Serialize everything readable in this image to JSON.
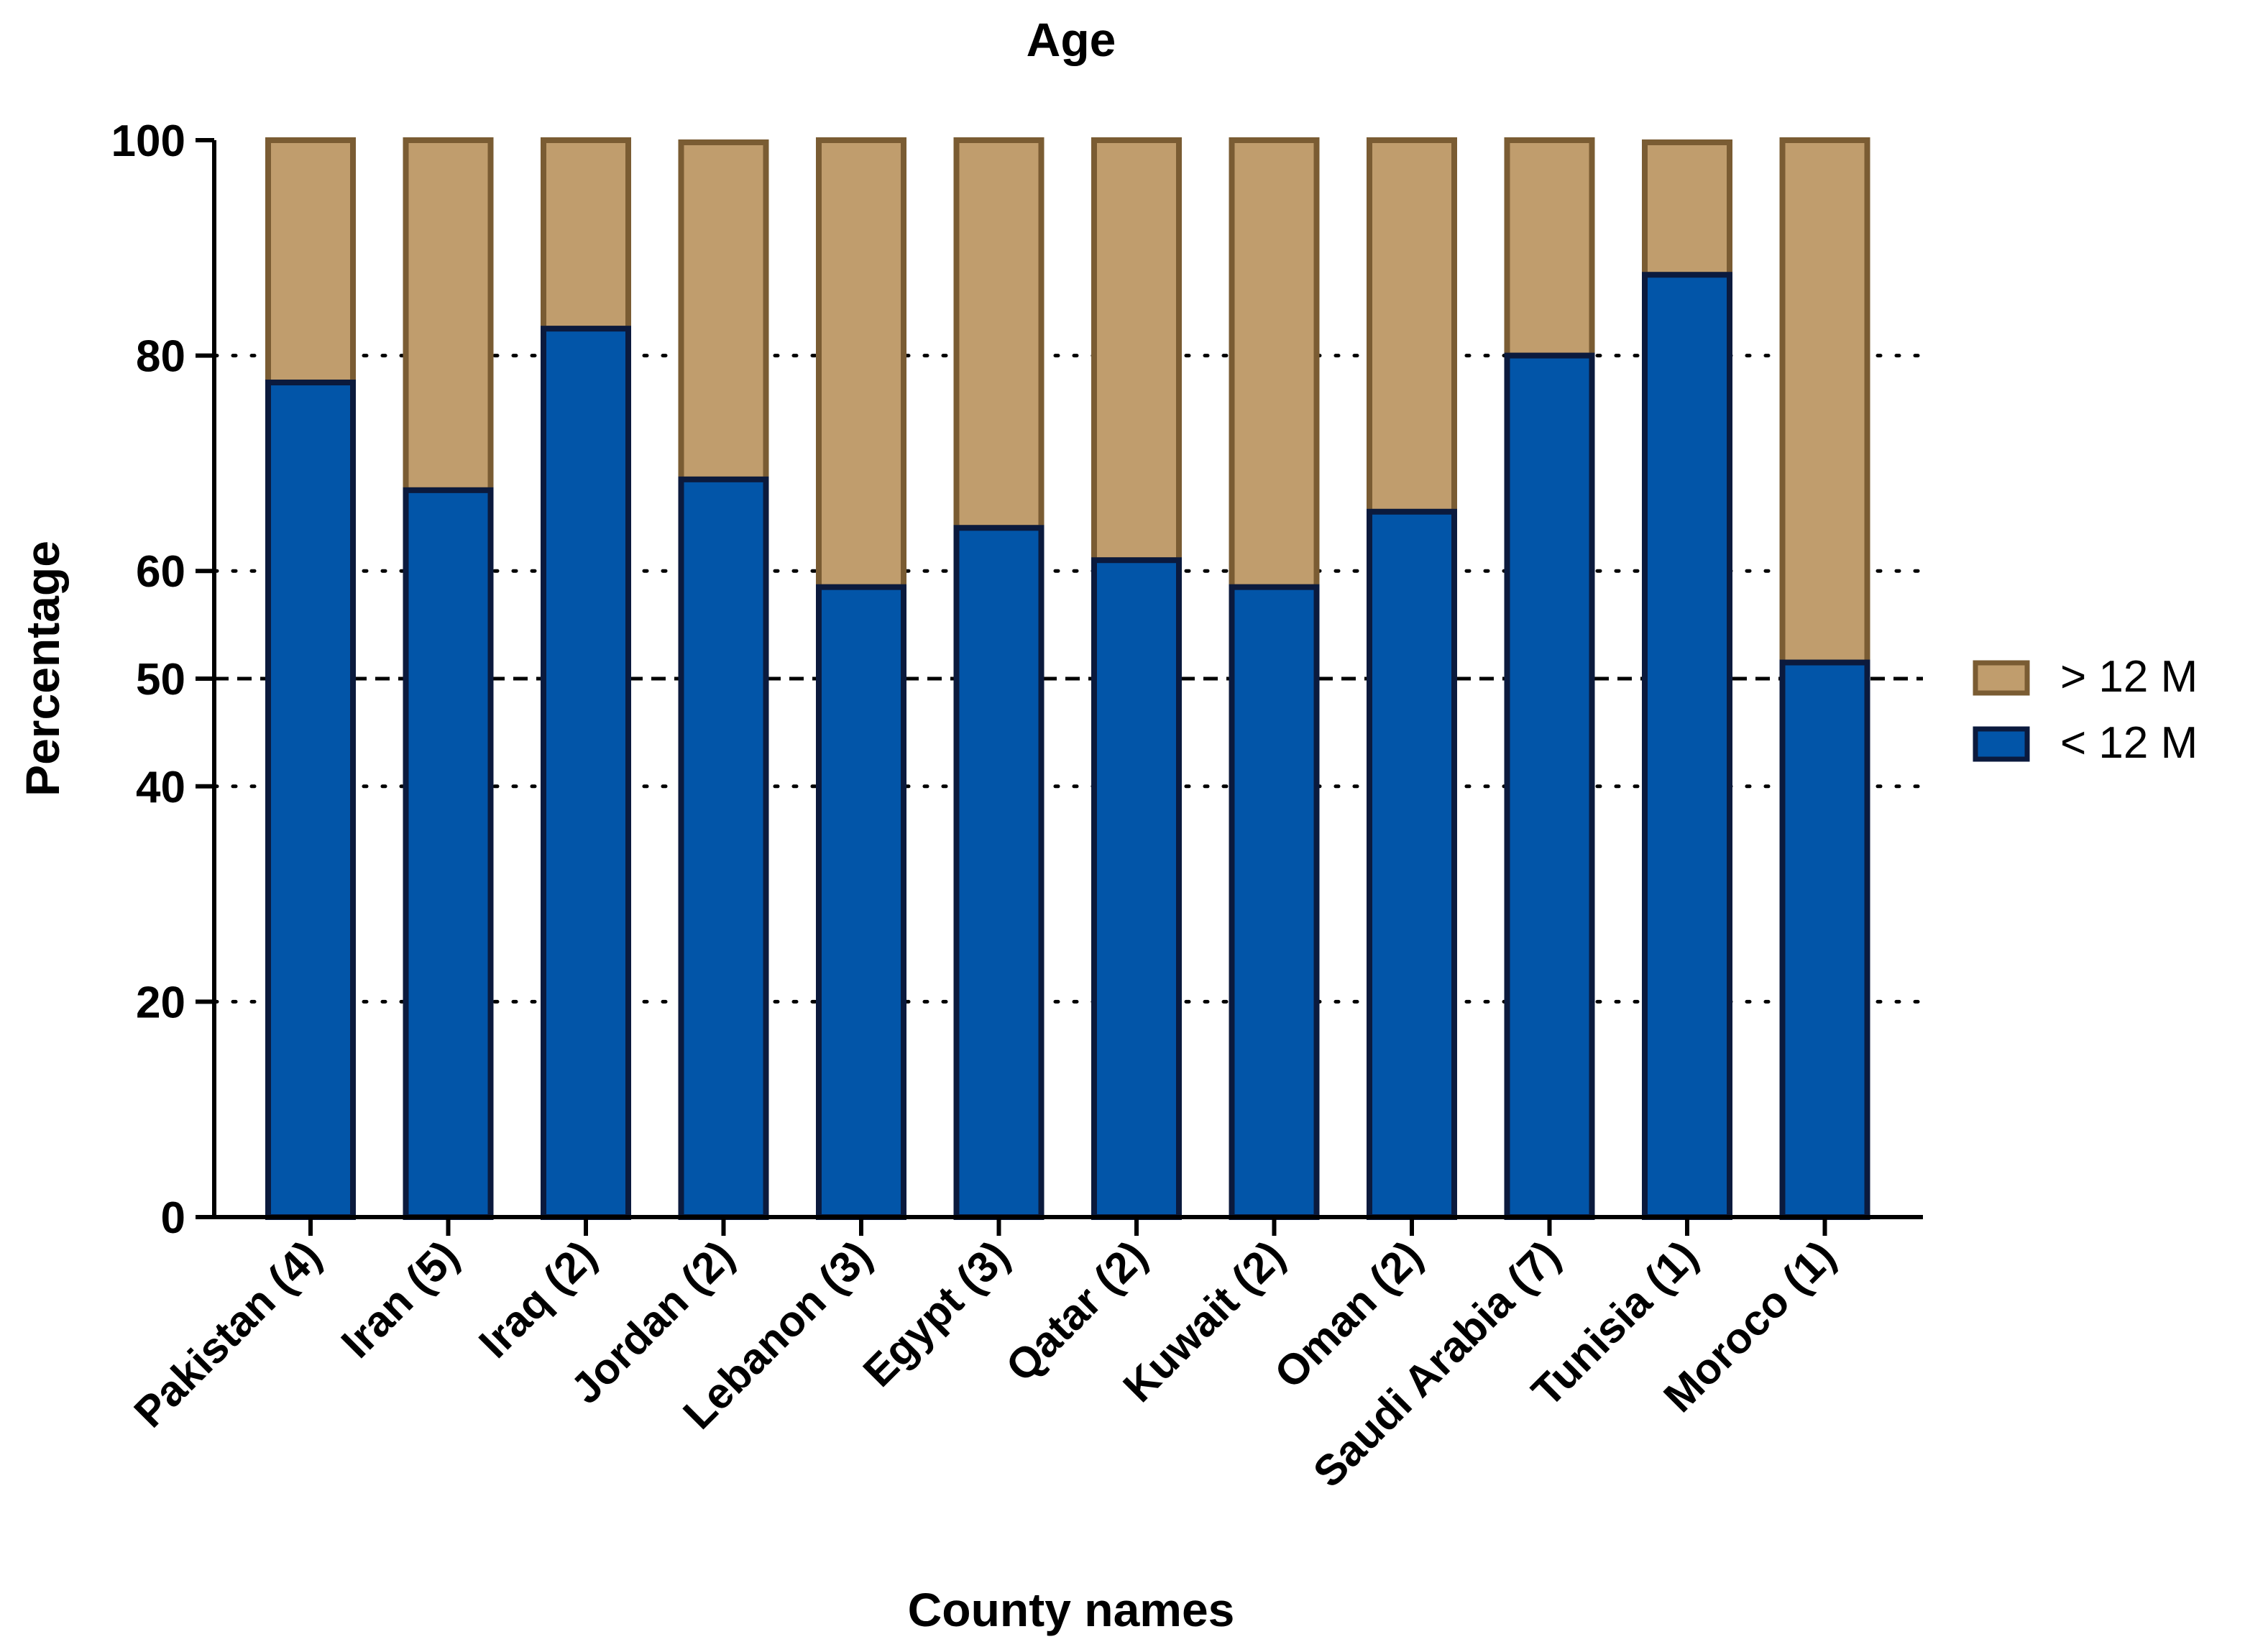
{
  "colors": {
    "below": "#0255a8",
    "below_border": "#0b1a3d",
    "above": "#c09d6d",
    "above_border": "#7a5c33",
    "axis": "#000000"
  },
  "chart_data": {
    "type": "bar",
    "stacked": true,
    "title": "Age",
    "xlabel": "County names",
    "ylabel": "Percentage",
    "ylim": [
      0,
      100
    ],
    "yticks": [
      0,
      20,
      40,
      50,
      60,
      80,
      100
    ],
    "grid": "dotted horizontal at 20, 40, 60, 80; dashed at 50",
    "legend_position": "right",
    "categories": [
      "Pakistan (4)",
      "Iran (5)",
      "Iraq (2)",
      "Jordan (2)",
      "Lebanon (3)",
      "Egypt (3)",
      "Qatar (2)",
      "Kuwait (2)",
      "Oman (2)",
      "Saudi Arabia (7)",
      "Tunisia (1)",
      "Moroco (1)"
    ],
    "series": [
      {
        "name": "< 12 M",
        "values": [
          77.5,
          67.5,
          82.5,
          68.5,
          58.5,
          64,
          61,
          58.5,
          65.5,
          80,
          87.5,
          51.5
        ]
      },
      {
        "name": "> 12 M",
        "values": [
          22.5,
          32.5,
          17.5,
          31.3,
          41.5,
          36,
          39,
          41.5,
          34.5,
          20,
          12.3,
          48.5
        ]
      }
    ],
    "legend": [
      {
        "label": "> 12 M",
        "series": 1
      },
      {
        "label": "< 12 M",
        "series": 0
      }
    ]
  }
}
